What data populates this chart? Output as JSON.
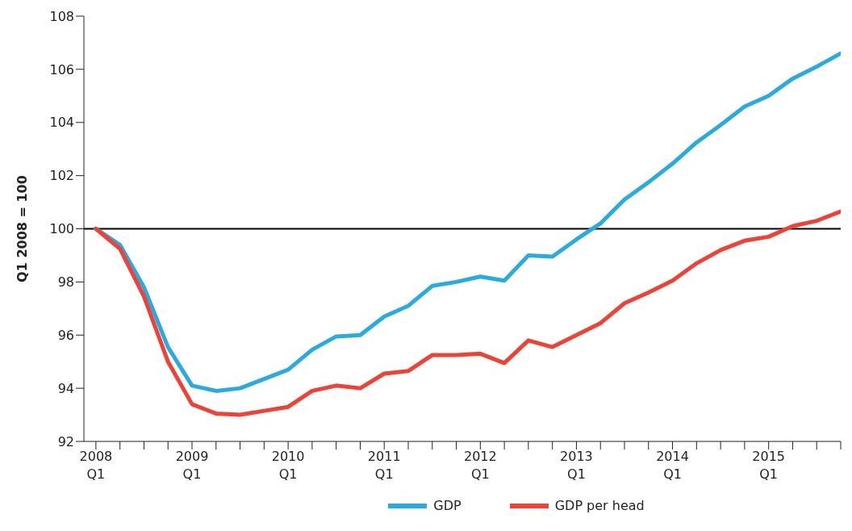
{
  "chart_data": {
    "type": "line",
    "ylabel": "Q1 2008 = 100",
    "categories": [
      "2008 Q1",
      null,
      null,
      null,
      "2009 Q1",
      null,
      null,
      null,
      "2010 Q1",
      null,
      null,
      null,
      "2011 Q1",
      null,
      null,
      null,
      "2012 Q1",
      null,
      null,
      null,
      "2013 Q1",
      null,
      null,
      null,
      "2014 Q1",
      null,
      null,
      null,
      "2015 Q1",
      null,
      null,
      null
    ],
    "series": [
      {
        "name": "GDP",
        "color": "#29abe2",
        "values": [
          100,
          99.4,
          97.8,
          95.55,
          94.1,
          93.9,
          94.0,
          94.35,
          94.7,
          95.45,
          95.95,
          96.0,
          96.7,
          97.1,
          97.85,
          98.0,
          98.2,
          98.05,
          99.0,
          98.95,
          99.6,
          100.2,
          101.1,
          101.75,
          102.45,
          103.25,
          103.9,
          104.6,
          105.0,
          105.65,
          106.1,
          106.6
        ]
      },
      {
        "name": "GDP per head",
        "color": "#ef4136",
        "values": [
          100,
          99.25,
          97.45,
          95.0,
          93.4,
          93.05,
          93.0,
          93.15,
          93.3,
          93.9,
          94.1,
          94.0,
          94.55,
          94.65,
          95.25,
          95.25,
          95.3,
          94.95,
          95.8,
          95.55,
          96.0,
          96.45,
          97.2,
          97.6,
          98.05,
          98.7,
          99.2,
          99.55,
          99.7,
          100.1,
          100.3,
          100.65
        ]
      }
    ],
    "ylim": [
      92,
      108
    ],
    "yticks": [
      92,
      94,
      96,
      98,
      100,
      102,
      104,
      106,
      108
    ],
    "ref_lines": [
      {
        "axis": "y",
        "value": 100,
        "color": "#000000"
      }
    ],
    "grid": false,
    "legend": "bottom",
    "marker": "none",
    "line_style": "solid"
  }
}
